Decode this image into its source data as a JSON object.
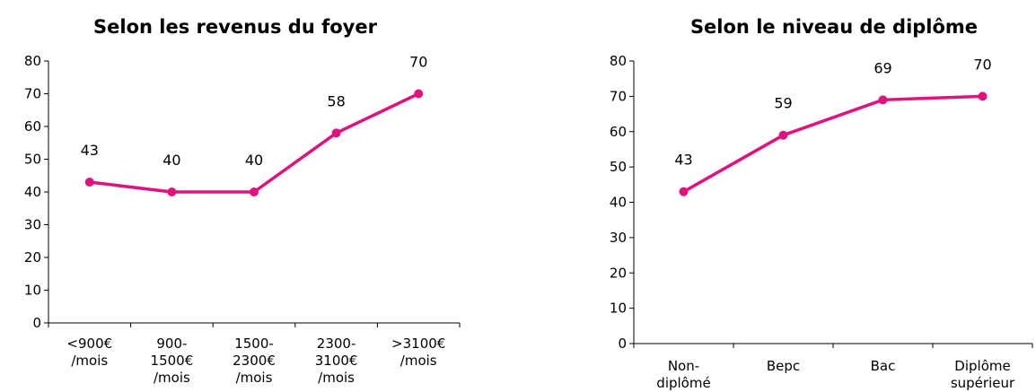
{
  "chart_data": [
    {
      "type": "line",
      "title": "Selon les revenus du foyer",
      "categories": [
        "<900€\n/mois",
        "900-\n1500€\n/mois",
        "1500-\n2300€\n/mois",
        "2300-\n3100€\n/mois",
        ">3100€\n/mois"
      ],
      "values": [
        43,
        40,
        40,
        58,
        70
      ],
      "ylim": [
        0,
        80
      ],
      "yticks": [
        0,
        10,
        20,
        30,
        40,
        50,
        60,
        70,
        80
      ],
      "color": "#e0137e"
    },
    {
      "type": "line",
      "title": "Selon le niveau de diplôme",
      "categories": [
        "Non-\ndiplômé",
        "Bepc",
        "Bac",
        "Diplôme\nsupérieur"
      ],
      "values": [
        43,
        59,
        69,
        70
      ],
      "ylim": [
        0,
        80
      ],
      "yticks": [
        0,
        10,
        20,
        30,
        40,
        50,
        60,
        70,
        80
      ],
      "color": "#e0137e"
    }
  ]
}
